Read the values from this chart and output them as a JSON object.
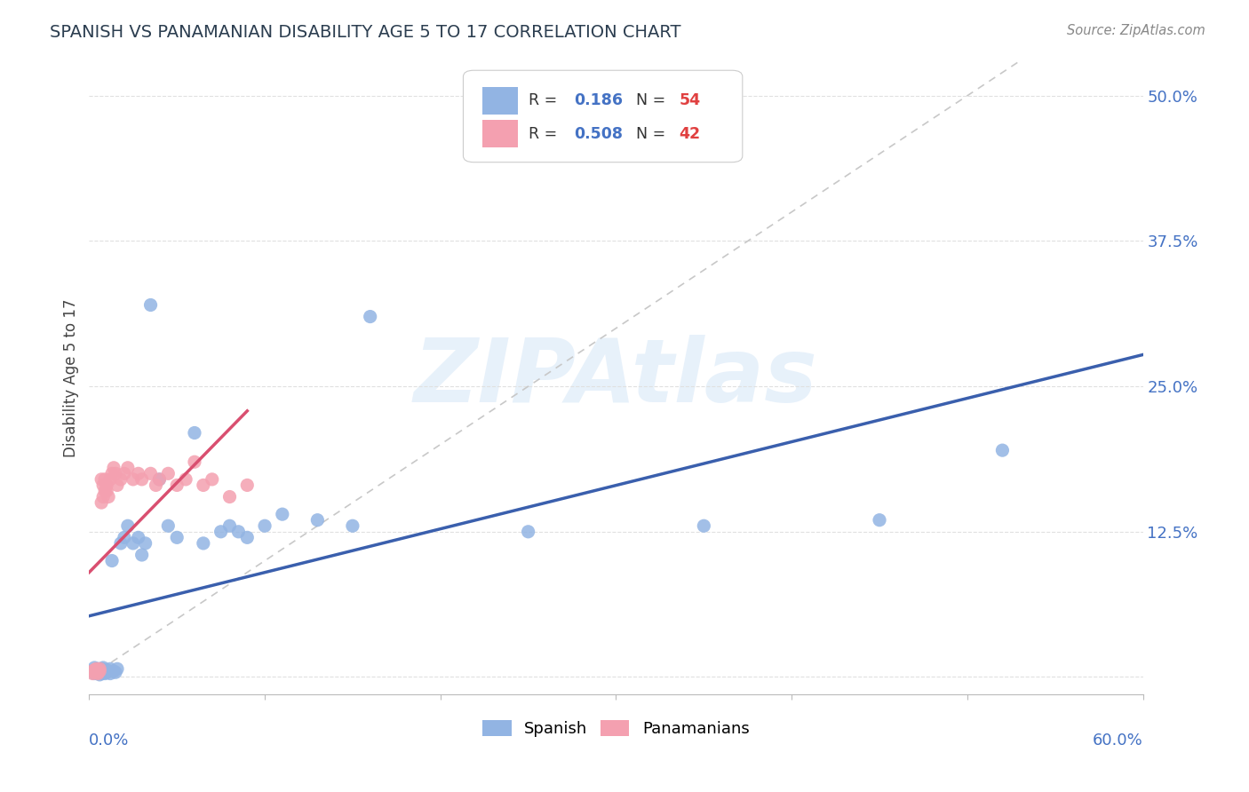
{
  "title": "SPANISH VS PANAMANIAN DISABILITY AGE 5 TO 17 CORRELATION CHART",
  "source": "Source: ZipAtlas.com",
  "ylabel": "Disability Age 5 to 17",
  "ytick_vals": [
    0.0,
    0.125,
    0.25,
    0.375,
    0.5
  ],
  "ytick_labels": [
    "",
    "12.5%",
    "25.0%",
    "37.5%",
    "50.0%"
  ],
  "xlim": [
    0.0,
    0.6
  ],
  "ylim": [
    -0.015,
    0.53
  ],
  "legend_r_blue": "0.186",
  "legend_n_blue": "54",
  "legend_r_pink": "0.508",
  "legend_n_pink": "42",
  "blue_color": "#92b4e3",
  "pink_color": "#f4a0b0",
  "blue_line_color": "#3a5fad",
  "pink_line_color": "#d94f70",
  "ref_line_color": "#c8c8c8",
  "watermark": "ZIPAtlas",
  "background_color": "#ffffff",
  "tick_color": "#4472c4",
  "text_color": "#2c3e50",
  "source_color": "#888888",
  "grid_color": "#e0e0e0",
  "spanish_x": [
    0.002,
    0.003,
    0.003,
    0.004,
    0.004,
    0.005,
    0.005,
    0.005,
    0.006,
    0.006,
    0.006,
    0.007,
    0.007,
    0.007,
    0.008,
    0.008,
    0.008,
    0.009,
    0.009,
    0.01,
    0.01,
    0.011,
    0.012,
    0.012,
    0.013,
    0.014,
    0.015,
    0.016,
    0.018,
    0.02,
    0.022,
    0.025,
    0.028,
    0.03,
    0.032,
    0.035,
    0.04,
    0.045,
    0.05,
    0.06,
    0.065,
    0.075,
    0.08,
    0.085,
    0.09,
    0.1,
    0.11,
    0.13,
    0.15,
    0.16,
    0.25,
    0.35,
    0.45,
    0.52
  ],
  "spanish_y": [
    0.005,
    0.003,
    0.008,
    0.004,
    0.006,
    0.005,
    0.003,
    0.007,
    0.004,
    0.006,
    0.002,
    0.005,
    0.007,
    0.003,
    0.006,
    0.004,
    0.008,
    0.005,
    0.003,
    0.006,
    0.004,
    0.005,
    0.007,
    0.003,
    0.1,
    0.005,
    0.004,
    0.007,
    0.115,
    0.12,
    0.13,
    0.115,
    0.12,
    0.105,
    0.115,
    0.32,
    0.17,
    0.13,
    0.12,
    0.21,
    0.115,
    0.125,
    0.13,
    0.125,
    0.12,
    0.13,
    0.14,
    0.135,
    0.13,
    0.31,
    0.125,
    0.13,
    0.135,
    0.195
  ],
  "panama_x": [
    0.002,
    0.002,
    0.003,
    0.003,
    0.004,
    0.004,
    0.005,
    0.005,
    0.005,
    0.006,
    0.006,
    0.007,
    0.007,
    0.008,
    0.008,
    0.009,
    0.009,
    0.01,
    0.01,
    0.011,
    0.012,
    0.013,
    0.014,
    0.015,
    0.016,
    0.018,
    0.02,
    0.022,
    0.025,
    0.028,
    0.03,
    0.035,
    0.038,
    0.04,
    0.045,
    0.05,
    0.055,
    0.06,
    0.065,
    0.07,
    0.08,
    0.09
  ],
  "panama_y": [
    0.005,
    0.003,
    0.006,
    0.004,
    0.005,
    0.007,
    0.004,
    0.006,
    0.003,
    0.005,
    0.007,
    0.15,
    0.17,
    0.155,
    0.165,
    0.16,
    0.17,
    0.165,
    0.16,
    0.155,
    0.17,
    0.175,
    0.18,
    0.175,
    0.165,
    0.17,
    0.175,
    0.18,
    0.17,
    0.175,
    0.17,
    0.175,
    0.165,
    0.17,
    0.175,
    0.165,
    0.17,
    0.185,
    0.165,
    0.17,
    0.155,
    0.165
  ]
}
